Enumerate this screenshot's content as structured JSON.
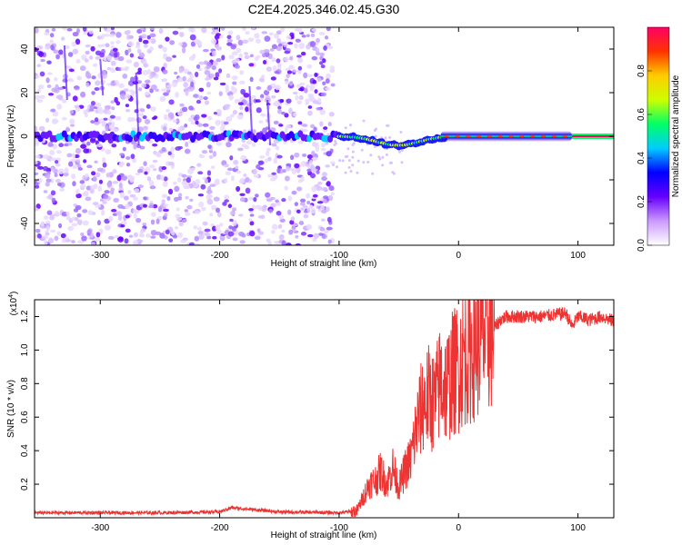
{
  "figure_title": "C2E4.2025.346.02.45.G30",
  "chart_data": [
    {
      "type": "heatmap",
      "id": "spectrogram",
      "title": "C2E4.2025.346.02.45.G30",
      "xlabel": "Height of straight line (km)",
      "ylabel": "Frequency (Hz)",
      "xlim": [
        -355,
        130
      ],
      "ylim": [
        -50,
        50
      ],
      "x_ticks": [
        -300,
        -200,
        -100,
        0,
        100
      ],
      "y_ticks": [
        -40,
        -20,
        0,
        20,
        40
      ],
      "colorbar": {
        "label": "Normalized spectral amplitude",
        "range": [
          0,
          1
        ],
        "ticks": [
          0.0,
          0.2,
          0.4,
          0.6,
          0.8
        ],
        "tick_labels": [
          "0.0",
          "0.2",
          "0.4",
          "0.6",
          "0.8"
        ],
        "colors": [
          "#ffffff",
          "#cc99ff",
          "#6600ff",
          "#0000ff",
          "#00ccff",
          "#00ff66",
          "#ccff00",
          "#ffcc00",
          "#ff3300",
          "#ff0066"
        ]
      },
      "signal_band_center_hz": 0,
      "noise_region_km": [
        -355,
        -105
      ]
    },
    {
      "type": "line",
      "id": "snr",
      "xlabel": "Height of straight line (km)",
      "ylabel": "SNR (10 * v/v)",
      "scale_label": "(x10",
      "scale_exponent": "4",
      "scale_suffix": ")",
      "xlim": [
        -355,
        130
      ],
      "ylim": [
        0,
        1.3
      ],
      "x_ticks": [
        -300,
        -200,
        -100,
        0,
        100
      ],
      "y_ticks": [
        0.2,
        0.4,
        0.6,
        0.8,
        1.0,
        1.2
      ],
      "y_tick_labels": [
        "0.2",
        "0.4",
        "0.6",
        "0.8",
        "1.0",
        "1.2"
      ],
      "line_color": "#ee3333",
      "series": [
        {
          "name": "SNR",
          "x": [
            -355,
            -300,
            -250,
            -200,
            -190,
            -150,
            -100,
            -85,
            -80,
            -75,
            -70,
            -65,
            -60,
            -55,
            -50,
            -45,
            -40,
            -35,
            -30,
            -25,
            -20,
            -15,
            -10,
            -5,
            0,
            5,
            10,
            15,
            20,
            25,
            30,
            35,
            40,
            50,
            60,
            70,
            80,
            90,
            95,
            100,
            110,
            120,
            130
          ],
          "y": [
            0.03,
            0.03,
            0.03,
            0.035,
            0.06,
            0.035,
            0.03,
            0.04,
            0.12,
            0.2,
            0.22,
            0.28,
            0.2,
            0.3,
            0.18,
            0.28,
            0.35,
            0.55,
            0.68,
            0.72,
            0.68,
            0.82,
            0.78,
            0.86,
            0.9,
            0.98,
            1.0,
            1.05,
            1.08,
            1.12,
            1.13,
            1.18,
            1.2,
            1.2,
            1.2,
            1.2,
            1.21,
            1.22,
            1.14,
            1.2,
            1.18,
            1.2,
            1.17
          ]
        }
      ]
    }
  ]
}
